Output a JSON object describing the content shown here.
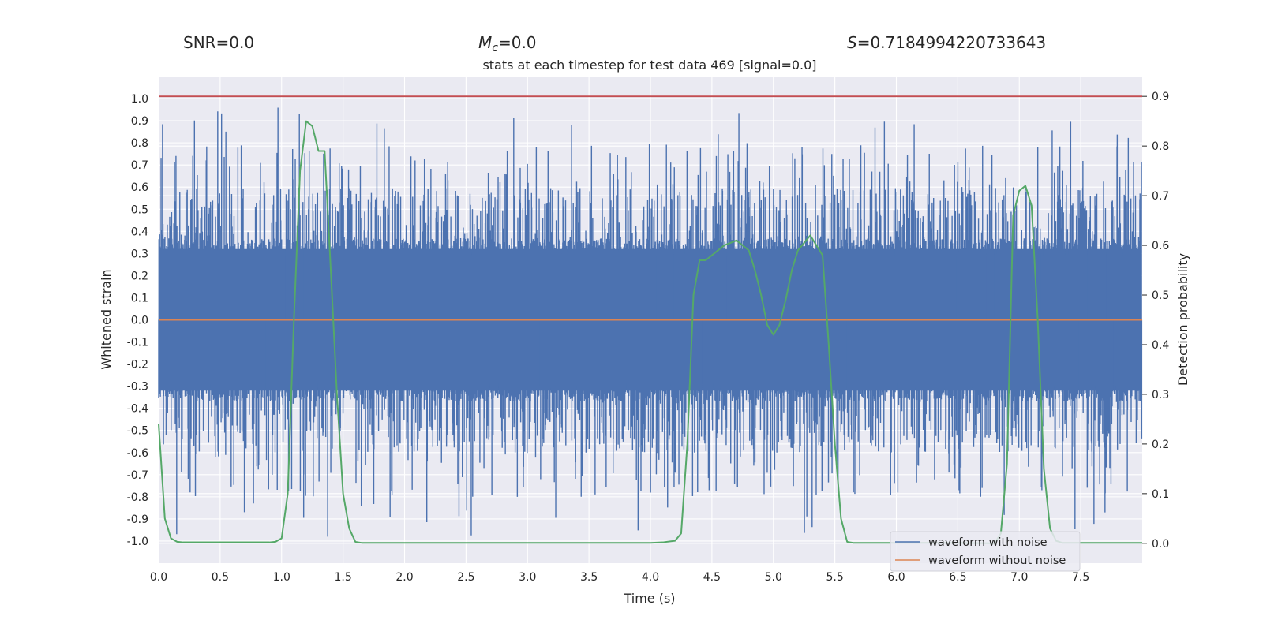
{
  "chart_data": {
    "type": "line",
    "title": "stats at each timestep for test data 469 [signal=0.0]",
    "header": {
      "snr_text": "SNR=0.0",
      "mc_symbol": "M",
      "mc_subscript": "c",
      "mc_value_text": "=0.0",
      "s_symbol": "S",
      "s_value_text": "=0.7184994220733643"
    },
    "xlabel": "Time (s)",
    "ylabel_left": "Whitened strain",
    "ylabel_right": "Detection probability",
    "xlim": [
      0.0,
      8.0
    ],
    "ylim_left": [
      -1.1,
      1.1
    ],
    "ylim_right": [
      -0.04,
      0.94
    ],
    "x_ticks": [
      "0.0",
      "0.5",
      "1.0",
      "1.5",
      "2.0",
      "2.5",
      "3.0",
      "3.5",
      "4.0",
      "4.5",
      "5.0",
      "5.5",
      "6.0",
      "6.5",
      "7.0",
      "7.5"
    ],
    "y_left_ticks": [
      "1.0",
      "0.9",
      "0.8",
      "0.7",
      "0.6",
      "0.5",
      "0.4",
      "0.3",
      "0.2",
      "0.1",
      "0.0",
      "-0.1",
      "-0.2",
      "-0.3",
      "-0.4",
      "-0.5",
      "-0.6",
      "-0.7",
      "-0.8",
      "-0.9",
      "-1.0"
    ],
    "y_right_ticks": [
      "0.9",
      "0.8",
      "0.7",
      "0.6",
      "0.5",
      "0.4",
      "0.3",
      "0.2",
      "0.1",
      "0.0"
    ],
    "colors": {
      "background": "#eaeaf2",
      "grid": "#ffffff",
      "noise": "#4c72b0",
      "clean": "#dd8452",
      "probability": "#55a868",
      "threshold": "#c44e52"
    },
    "series": [
      {
        "name": "waveform with noise",
        "axis": "left",
        "style": "dense-noise",
        "samples": 4096,
        "core_amplitude": 0.32,
        "peak_max": 0.98,
        "trough_min": -1.0
      },
      {
        "name": "waveform without noise",
        "axis": "left",
        "x": [
          0.0,
          8.0
        ],
        "y": [
          0.0,
          0.0
        ]
      },
      {
        "name": "Detection probability",
        "axis": "right",
        "x": [
          0.0,
          0.05,
          0.1,
          0.15,
          0.2,
          0.3,
          0.5,
          0.7,
          0.9,
          0.95,
          1.0,
          1.05,
          1.1,
          1.15,
          1.2,
          1.25,
          1.3,
          1.35,
          1.4,
          1.45,
          1.5,
          1.55,
          1.6,
          1.65,
          1.7,
          2.0,
          3.0,
          4.0,
          4.1,
          4.2,
          4.25,
          4.3,
          4.35,
          4.4,
          4.45,
          4.5,
          4.6,
          4.7,
          4.75,
          4.8,
          4.85,
          4.9,
          4.95,
          5.0,
          5.05,
          5.1,
          5.15,
          5.2,
          5.3,
          5.4,
          5.45,
          5.5,
          5.55,
          5.6,
          5.65,
          5.7,
          5.75,
          5.8,
          6.0,
          6.5,
          6.8,
          6.85,
          6.9,
          6.95,
          7.0,
          7.05,
          7.1,
          7.15,
          7.2,
          7.25,
          7.3,
          7.35,
          7.4,
          7.5,
          8.0
        ],
        "y": [
          0.24,
          0.05,
          0.01,
          0.003,
          0.002,
          0.002,
          0.002,
          0.002,
          0.002,
          0.003,
          0.01,
          0.1,
          0.45,
          0.75,
          0.85,
          0.84,
          0.79,
          0.79,
          0.55,
          0.3,
          0.1,
          0.03,
          0.003,
          0.001,
          0.001,
          0.001,
          0.001,
          0.001,
          0.002,
          0.005,
          0.02,
          0.2,
          0.5,
          0.57,
          0.57,
          0.58,
          0.6,
          0.61,
          0.6,
          0.59,
          0.55,
          0.5,
          0.44,
          0.42,
          0.44,
          0.49,
          0.55,
          0.59,
          0.62,
          0.58,
          0.4,
          0.2,
          0.05,
          0.003,
          0.001,
          0.001,
          0.001,
          0.001,
          0.001,
          0.001,
          0.0,
          0.02,
          0.16,
          0.66,
          0.71,
          0.72,
          0.68,
          0.45,
          0.15,
          0.03,
          0.005,
          0.001,
          0.001,
          0.001,
          0.001
        ]
      },
      {
        "name": "threshold",
        "axis": "right",
        "x": [
          0.0,
          8.0
        ],
        "y": [
          0.9,
          0.9
        ]
      }
    ],
    "legend": {
      "position": "lower right",
      "entries": [
        "waveform with noise",
        "waveform without noise"
      ]
    }
  }
}
